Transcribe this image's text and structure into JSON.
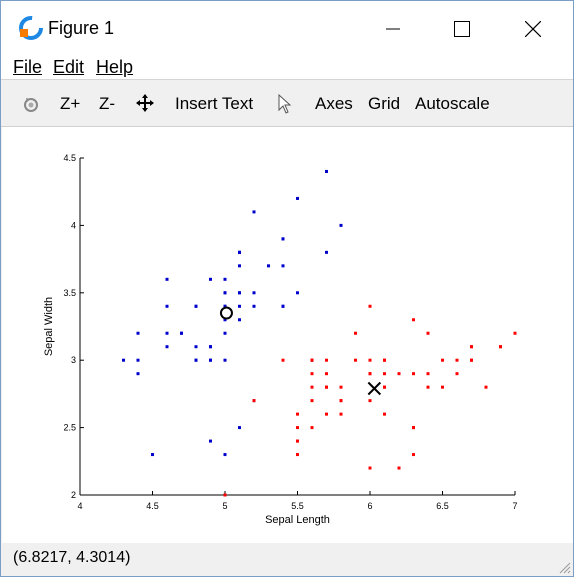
{
  "window": {
    "title": "Figure 1"
  },
  "menu": {
    "file": "File",
    "edit": "Edit",
    "help": "Help"
  },
  "toolbar": {
    "zoom_in": "Z+",
    "zoom_out": "Z-",
    "insert_text": "Insert Text",
    "axes": "Axes",
    "grid": "Grid",
    "autoscale": "Autoscale"
  },
  "status": {
    "coords": "(6.8217, 4.3014)"
  },
  "icons": [
    "app-icon",
    "minimize-icon",
    "maximize-icon",
    "close-icon",
    "rotate-icon",
    "pan-icon",
    "pointer-icon",
    "resize-grip-icon"
  ],
  "chart_data": {
    "type": "scatter",
    "xlabel": "Sepal Length",
    "ylabel": "Sepal Width",
    "xlim": [
      4,
      7
    ],
    "ylim": [
      2,
      4.5
    ],
    "xticks": [
      "4",
      "4.5",
      "5",
      "5.5",
      "6",
      "6.5",
      "7"
    ],
    "yticks": [
      "2",
      "2.5",
      "3",
      "3.5",
      "4",
      "4.5"
    ],
    "grid": false,
    "series": [
      {
        "color": "#0000cc",
        "marker": "dot",
        "points": [
          [
            5.1,
            3.5
          ],
          [
            4.9,
            3.0
          ],
          [
            4.7,
            3.2
          ],
          [
            4.6,
            3.1
          ],
          [
            5.0,
            3.6
          ],
          [
            5.4,
            3.9
          ],
          [
            4.6,
            3.4
          ],
          [
            5.0,
            3.4
          ],
          [
            4.4,
            2.9
          ],
          [
            4.9,
            3.1
          ],
          [
            5.4,
            3.7
          ],
          [
            4.8,
            3.4
          ],
          [
            4.8,
            3.0
          ],
          [
            4.3,
            3.0
          ],
          [
            5.8,
            4.0
          ],
          [
            5.7,
            4.4
          ],
          [
            5.4,
            3.9
          ],
          [
            5.1,
            3.5
          ],
          [
            5.7,
            3.8
          ],
          [
            5.1,
            3.8
          ],
          [
            5.4,
            3.4
          ],
          [
            5.1,
            3.7
          ],
          [
            4.6,
            3.6
          ],
          [
            5.1,
            3.3
          ],
          [
            4.8,
            3.4
          ],
          [
            5.0,
            3.0
          ],
          [
            5.0,
            3.4
          ],
          [
            5.2,
            3.5
          ],
          [
            5.2,
            3.4
          ],
          [
            4.7,
            3.2
          ],
          [
            4.8,
            3.1
          ],
          [
            5.4,
            3.4
          ],
          [
            5.2,
            4.1
          ],
          [
            5.5,
            4.2
          ],
          [
            4.9,
            3.1
          ],
          [
            5.0,
            3.2
          ],
          [
            5.5,
            3.5
          ],
          [
            4.9,
            3.6
          ],
          [
            4.4,
            3.0
          ],
          [
            5.1,
            3.4
          ],
          [
            5.0,
            3.5
          ],
          [
            4.5,
            2.3
          ],
          [
            4.4,
            3.2
          ],
          [
            5.0,
            3.5
          ],
          [
            5.1,
            3.8
          ],
          [
            4.8,
            3.0
          ],
          [
            5.1,
            3.8
          ],
          [
            4.6,
            3.2
          ],
          [
            5.3,
            3.7
          ],
          [
            5.0,
            3.3
          ],
          [
            5.2,
            2.7
          ],
          [
            4.9,
            2.4
          ],
          [
            5.0,
            2.3
          ],
          [
            5.1,
            2.5
          ],
          [
            5.7,
            4.4
          ],
          [
            5.6,
            3.0
          ],
          [
            4.9,
            3.0
          ]
        ]
      },
      {
        "color": "#ff0000",
        "marker": "dot",
        "points": [
          [
            7.0,
            3.2
          ],
          [
            6.4,
            3.2
          ],
          [
            6.9,
            3.1
          ],
          [
            5.5,
            2.3
          ],
          [
            6.5,
            2.8
          ],
          [
            5.7,
            2.8
          ],
          [
            6.3,
            3.3
          ],
          [
            6.6,
            2.9
          ],
          [
            5.2,
            2.7
          ],
          [
            5.9,
            3.0
          ],
          [
            6.0,
            2.2
          ],
          [
            6.1,
            2.9
          ],
          [
            5.6,
            2.9
          ],
          [
            6.7,
            3.1
          ],
          [
            5.6,
            3.0
          ],
          [
            5.8,
            2.7
          ],
          [
            6.2,
            2.2
          ],
          [
            5.6,
            2.5
          ],
          [
            5.9,
            3.2
          ],
          [
            6.1,
            2.8
          ],
          [
            6.3,
            2.5
          ],
          [
            6.1,
            2.8
          ],
          [
            6.4,
            2.9
          ],
          [
            6.6,
            3.0
          ],
          [
            6.8,
            2.8
          ],
          [
            6.7,
            3.0
          ],
          [
            6.0,
            2.9
          ],
          [
            5.7,
            2.6
          ],
          [
            5.5,
            2.4
          ],
          [
            5.5,
            2.4
          ],
          [
            5.8,
            2.7
          ],
          [
            6.0,
            2.7
          ],
          [
            5.4,
            3.0
          ],
          [
            6.0,
            3.4
          ],
          [
            6.7,
            3.1
          ],
          [
            6.3,
            2.3
          ],
          [
            5.6,
            3.0
          ],
          [
            5.5,
            2.5
          ],
          [
            5.5,
            2.6
          ],
          [
            6.1,
            3.0
          ],
          [
            5.8,
            2.6
          ],
          [
            5.0,
            2.0
          ],
          [
            5.6,
            2.7
          ],
          [
            5.7,
            3.0
          ],
          [
            5.7,
            2.9
          ],
          [
            6.2,
            2.9
          ],
          [
            5.7,
            2.8
          ],
          [
            6.3,
            2.9
          ],
          [
            6.5,
            3.0
          ],
          [
            6.7,
            3.0
          ],
          [
            6.0,
            2.9
          ],
          [
            6.1,
            2.6
          ],
          [
            5.6,
            2.8
          ],
          [
            5.8,
            2.8
          ],
          [
            6.1,
            3.0
          ],
          [
            6.4,
            2.8
          ],
          [
            6.9,
            3.1
          ],
          [
            6.3,
            2.5
          ],
          [
            6.0,
            3.0
          ]
        ]
      }
    ],
    "centroids": [
      {
        "marker": "circle",
        "x": 5.01,
        "y": 3.35
      },
      {
        "marker": "x",
        "x": 6.03,
        "y": 2.79
      }
    ]
  }
}
